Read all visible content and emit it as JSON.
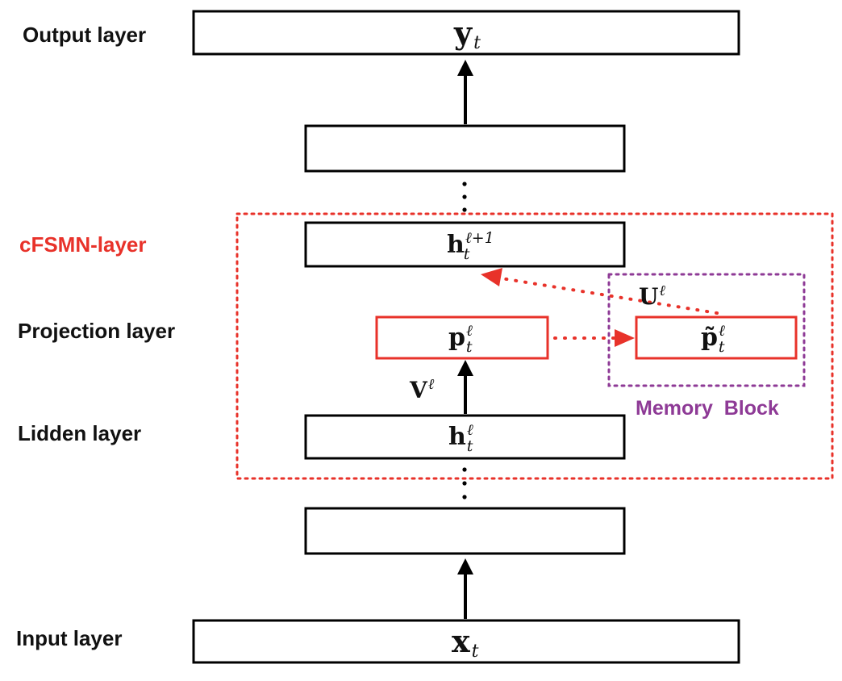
{
  "labels": {
    "output_layer": "Output layer",
    "cfsmn_layer": "cFSMN-layer",
    "projection_layer": "Projection layer",
    "hidden_layer": "Lidden layer",
    "input_layer": "Input layer",
    "memory_block": "Memory  Block"
  },
  "symbols": {
    "output": {
      "base": "y",
      "sub": "t",
      "sup": ""
    },
    "hidden_next": {
      "base": "h",
      "sub": "t",
      "sup": "ℓ+1"
    },
    "projection": {
      "base": "p",
      "sub": "t",
      "sup": "ℓ"
    },
    "memory": {
      "base": "p̃",
      "sub": "t",
      "sup": "ℓ"
    },
    "hidden": {
      "base": "h",
      "sub": "t",
      "sup": "ℓ"
    },
    "input": {
      "base": "x",
      "sub": "t",
      "sup": ""
    },
    "weight_v": {
      "base": "V",
      "sup": "ℓ"
    },
    "weight_u": {
      "base": "U",
      "sup": "ℓ"
    }
  },
  "colors": {
    "box_stroke": "#000000",
    "cfsmn": "#e8322a",
    "memory_block": "#8e3a96",
    "text": "#111111"
  }
}
